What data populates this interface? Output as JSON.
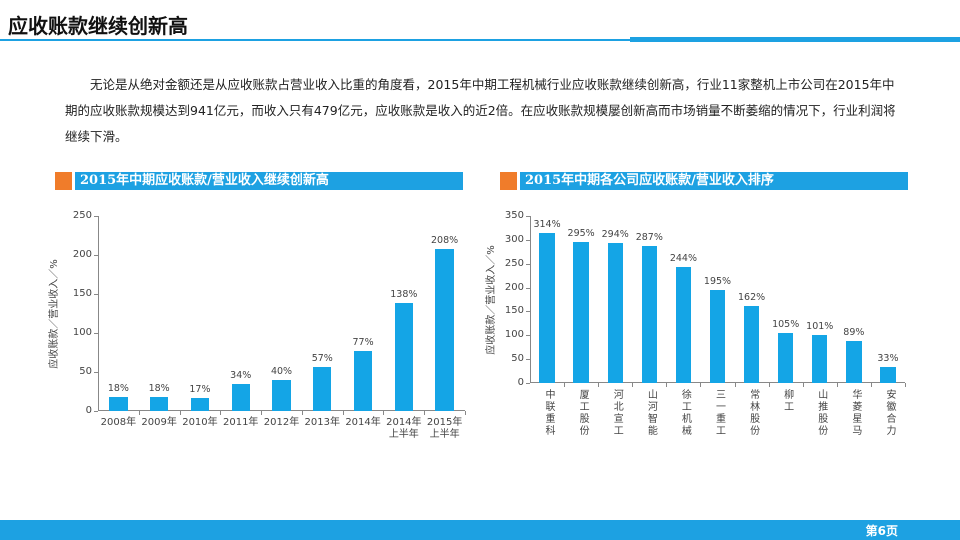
{
  "title": "应收账款继续创新高",
  "paragraph": "无论是从绝对金额还是从应收账款占营业收入比重的角度看，2015年中期工程机械行业应收账款继续创新高，行业11家整机上市公司在2015年中期的应收账款规模达到941亿元，而收入只有479亿元，应收账款是收入的近2倍。在应收账款规模屡创新高而市场销量不断萎缩的情况下，行业利润将继续下滑。",
  "page": "第6页",
  "chart_data": [
    {
      "type": "bar",
      "title": "2015年中期应收账款/营业收入继续创新高",
      "y_label": "应收账款／营业收入／%",
      "categories": [
        "2008年",
        "2009年",
        "2010年",
        "2011年",
        "2012年",
        "2013年",
        "2014年",
        "2014年\n上半年",
        "2015年\n上半年"
      ],
      "values": [
        18,
        18,
        17,
        34,
        40,
        57,
        77,
        138,
        208
      ],
      "value_labels": [
        "18%",
        "18%",
        "17%",
        "34%",
        "40%",
        "57%",
        "77%",
        "138%",
        "208%"
      ],
      "color": "#14a5e6",
      "ylim": [
        0,
        250
      ],
      "yticks": [
        0,
        50,
        100,
        150,
        200,
        250
      ]
    },
    {
      "type": "bar",
      "title": "2015年中期各公司应收账款/营业收入排序",
      "y_label": "应收账款／营业收入／%",
      "categories": [
        "中联重科",
        "厦工股份",
        "河北宣工",
        "山河智能",
        "徐工机械",
        "三一重工",
        "常林股份",
        "柳工",
        "山推股份",
        "华菱星马",
        "安徽合力"
      ],
      "values": [
        314,
        295,
        294,
        287,
        244,
        195,
        162,
        105,
        101,
        89,
        33
      ],
      "value_labels": [
        "314%",
        "295%",
        "294%",
        "287%",
        "244%",
        "195%",
        "162%",
        "105%",
        "101%",
        "89%",
        "33%"
      ],
      "color": "#14a5e6",
      "ylim": [
        0,
        350
      ],
      "yticks": [
        0,
        50,
        100,
        150,
        200,
        250,
        300,
        350
      ],
      "vertical_labels": true
    }
  ]
}
